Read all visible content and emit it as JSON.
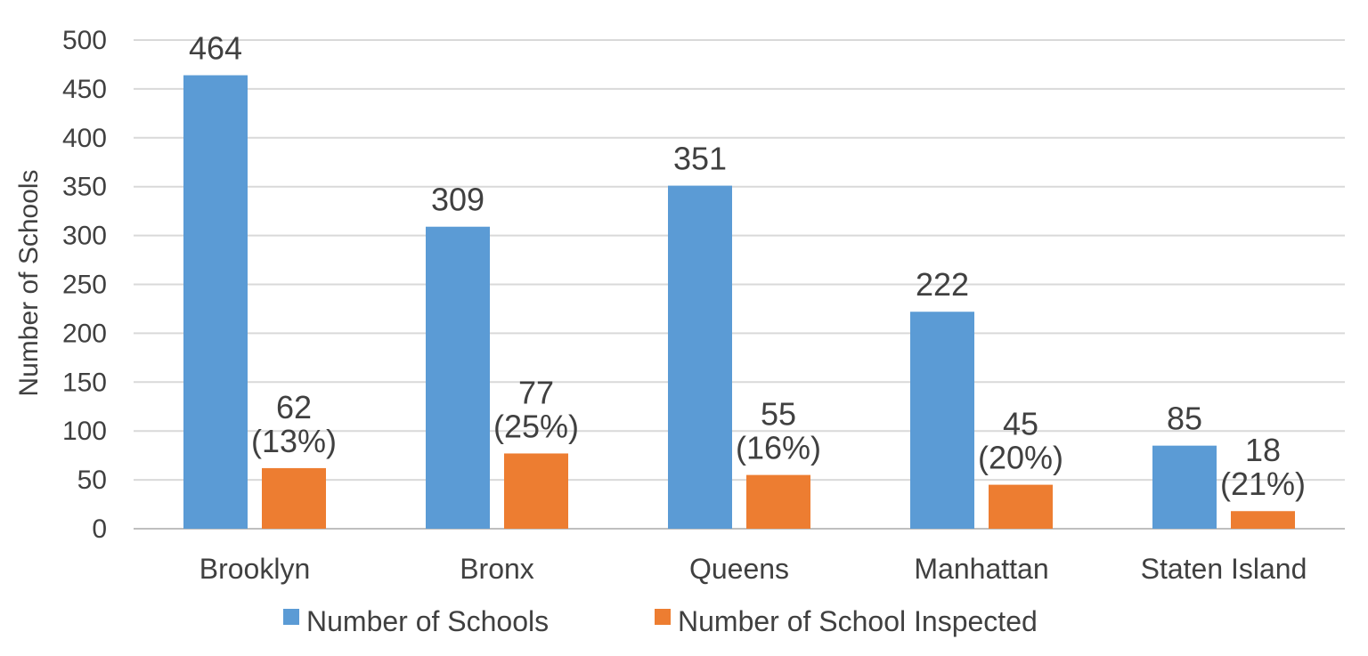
{
  "chart_data": {
    "type": "bar",
    "title": "",
    "xlabel": "",
    "ylabel": "Number of Schools",
    "ylim": [
      0,
      500
    ],
    "yticks": [
      0,
      50,
      100,
      150,
      200,
      250,
      300,
      350,
      400,
      450,
      500
    ],
    "grid": true,
    "legend_position": "bottom",
    "categories": [
      "Brooklyn",
      "Bronx",
      "Queens",
      "Manhattan",
      "Staten Island"
    ],
    "series": [
      {
        "name": "Number of Schools",
        "color": "#5B9BD5",
        "values": [
          464,
          309,
          351,
          222,
          85
        ],
        "labels": [
          [
            "464"
          ],
          [
            "309"
          ],
          [
            "351"
          ],
          [
            "222"
          ],
          [
            "85"
          ]
        ]
      },
      {
        "name": "Number of School Inspected",
        "color": "#ED7D31",
        "values": [
          62,
          77,
          55,
          45,
          18
        ],
        "labels": [
          [
            "62",
            "(13%)"
          ],
          [
            "77",
            "(25%)"
          ],
          [
            "55",
            "(16%)"
          ],
          [
            "45",
            "(20%)"
          ],
          [
            "18",
            "(21%)"
          ]
        ]
      }
    ]
  }
}
